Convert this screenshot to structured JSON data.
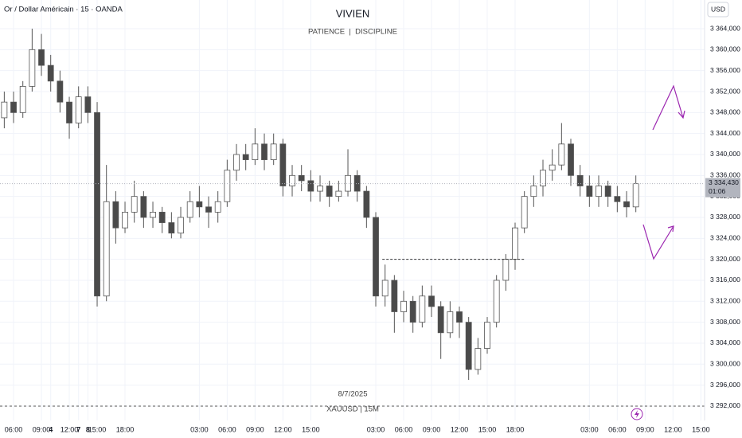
{
  "chart_data": {
    "type": "candlestick",
    "symbol_title": "Or / Dollar Américain · 15 · OANDA",
    "title": "VIVIEN",
    "subtitle": "PATIENCE  |  DISCIPLINE",
    "date_label": "8/7/2025",
    "watermark": "XAUUSD | 15M",
    "currency": "USD",
    "x": [
      -1,
      0,
      1,
      2,
      3,
      4,
      5,
      6,
      7,
      8,
      9,
      10,
      11,
      12,
      13,
      14,
      15,
      16,
      17,
      18,
      19,
      20,
      21,
      22,
      23,
      24,
      25,
      26,
      27,
      28,
      29,
      30,
      31,
      32,
      33,
      34,
      35,
      36,
      37,
      38,
      39,
      40,
      41,
      42,
      43,
      44,
      45,
      46,
      47,
      48,
      49,
      50,
      51,
      52,
      53,
      54,
      55,
      56,
      57,
      58,
      59,
      60,
      61,
      62,
      63,
      64,
      65,
      66,
      67
    ],
    "open": [
      3347,
      3350,
      3348,
      3353,
      3360,
      3357,
      3354,
      3350,
      3346,
      3351,
      3348,
      3313,
      3331,
      3326,
      3329,
      3332,
      3328,
      3329,
      3327,
      3325,
      3328,
      3331,
      3330,
      3329,
      3331,
      3337,
      3340,
      3339,
      3342,
      3339,
      3342,
      3334,
      3336,
      3335,
      3333,
      3334,
      3332,
      3333,
      3336,
      3333,
      3328,
      3313,
      3316,
      3310,
      3312,
      3308,
      3313,
      3311,
      3306,
      3310,
      3308,
      3299,
      3303,
      3308,
      3316,
      3320,
      3326,
      3332,
      3334,
      3337,
      3338,
      3342,
      3336,
      3334,
      3332,
      3334,
      3332,
      3331,
      3330
    ],
    "high": [
      3352,
      3352,
      3354,
      3364,
      3363,
      3359,
      3356,
      3351,
      3353,
      3353,
      3350,
      3338,
      3333,
      3331,
      3335,
      3333,
      3331,
      3330,
      3329,
      3330,
      3333,
      3334,
      3332,
      3333,
      3339,
      3342,
      3342,
      3345,
      3344,
      3344,
      3343,
      3338,
      3338,
      3337,
      3336,
      3335,
      3335,
      3341,
      3337,
      3334,
      3329,
      3319,
      3317,
      3314,
      3313,
      3315,
      3315,
      3312,
      3312,
      3311,
      3309,
      3305,
      3309,
      3317,
      3321,
      3327,
      3333,
      3336,
      3339,
      3341,
      3346,
      3343,
      3338,
      3336,
      3336,
      3335,
      3334,
      3333,
      3336
    ],
    "low": [
      3345,
      3346,
      3347,
      3352,
      3355,
      3352,
      3348,
      3343,
      3345,
      3346,
      3311,
      3312,
      3323,
      3325,
      3327,
      3326,
      3326,
      3325,
      3324,
      3324,
      3327,
      3328,
      3326,
      3327,
      3330,
      3335,
      3337,
      3338,
      3337,
      3338,
      3332,
      3332,
      3333,
      3331,
      3331,
      3330,
      3331,
      3332,
      3331,
      3326,
      3311,
      3311,
      3306,
      3308,
      3306,
      3307,
      3309,
      3301,
      3305,
      3305,
      3297,
      3298,
      3302,
      3307,
      3314,
      3318,
      3325,
      3330,
      3332,
      3335,
      3337,
      3334,
      3332,
      3330,
      3330,
      3330,
      3329,
      3328,
      3329
    ],
    "close": [
      3350,
      3348,
      3353,
      3360,
      3357,
      3354,
      3350,
      3346,
      3351,
      3348,
      3313,
      3331,
      3326,
      3329,
      3332,
      3328,
      3329,
      3327,
      3325,
      3328,
      3331,
      3330,
      3329,
      3331,
      3337,
      3340,
      3339,
      3342,
      3339,
      3342,
      3334,
      3336,
      3335,
      3333,
      3334,
      3332,
      3333,
      3336,
      3333,
      3328,
      3313,
      3316,
      3310,
      3312,
      3308,
      3313,
      3311,
      3306,
      3310,
      3308,
      3299,
      3303,
      3308,
      3316,
      3320,
      3326,
      3332,
      3334,
      3337,
      3338,
      3342,
      3336,
      3334,
      3332,
      3334,
      3332,
      3331,
      3330,
      3334.43
    ],
    "up_color": "#ffffff",
    "down_color": "#4a4a4a",
    "wick_color": "#555555",
    "level": {
      "value": 3320,
      "x": [
        39.7,
        55.1
      ]
    },
    "last_price": {
      "value": 3334.43,
      "label": "3 334,430"
    },
    "countdown": "01:06",
    "xlim": [
      -1.46,
      74.4
    ],
    "ylim": [
      3289.26,
      3369.47
    ],
    "grid": true,
    "xticks": [
      {
        "value": 0,
        "label": "06:00"
      },
      {
        "value": 3,
        "label": "09:00"
      },
      {
        "value": 6,
        "label": "12:00"
      },
      {
        "value": 9,
        "label": "15:00"
      },
      {
        "value": 12,
        "label": "18:00"
      },
      4,
      {
        "value": 20,
        "label": "03:00"
      },
      {
        "value": 23,
        "label": "06:00"
      },
      {
        "value": 26,
        "label": "09:00"
      },
      {
        "value": 29,
        "label": "12:00"
      },
      {
        "value": 32,
        "label": "15:00"
      },
      7,
      {
        "value": 39,
        "label": "03:00"
      },
      {
        "value": 42,
        "label": "06:00"
      },
      {
        "value": 45,
        "label": "09:00"
      },
      {
        "value": 48,
        "label": "12:00"
      },
      {
        "value": 51,
        "label": "15:00"
      },
      {
        "value": 54,
        "label": "18:00"
      },
      8,
      {
        "value": 62,
        "label": "03:00"
      },
      {
        "value": 65,
        "label": "06:00"
      },
      {
        "value": 68,
        "label": "09:00"
      },
      {
        "value": 71,
        "label": "12:00"
      },
      {
        "value": 74,
        "label": "15:00"
      }
    ],
    "xtick_positions": [
      0,
      3,
      6,
      9,
      12,
      17,
      20,
      23,
      26,
      29,
      32,
      36,
      39,
      42,
      45,
      48,
      51,
      54,
      59,
      62,
      65,
      68,
      71,
      74
    ],
    "yticks": [
      {
        "value": 3292,
        "label": "3 292,000"
      },
      {
        "value": 3296,
        "label": "3 296,000"
      },
      {
        "value": 3300,
        "label": "3 300,000"
      },
      {
        "value": 3304,
        "label": "3 304,000"
      },
      {
        "value": 3308,
        "label": "3 308,000"
      },
      {
        "value": 3312,
        "label": "3 312,000"
      },
      {
        "value": 3316,
        "label": "3 316,000"
      },
      {
        "value": 3320,
        "label": "3 320,000"
      },
      {
        "value": 3324,
        "label": "3 324,000"
      },
      {
        "value": 3328,
        "label": "3 328,000"
      },
      {
        "value": 3332,
        "label": "3 332,000"
      },
      {
        "value": 3336,
        "label": "3 336,000"
      },
      {
        "value": 3340,
        "label": "3 340,000"
      },
      {
        "value": 3344,
        "label": "3 344,000"
      },
      {
        "value": 3348,
        "label": "3 348,000"
      },
      {
        "value": 3352,
        "label": "3 352,000"
      },
      {
        "value": 3356,
        "label": "3 356,000"
      },
      {
        "value": 3360,
        "label": "3 360,000"
      },
      {
        "value": 3364,
        "label": "3 364,000"
      }
    ]
  }
}
